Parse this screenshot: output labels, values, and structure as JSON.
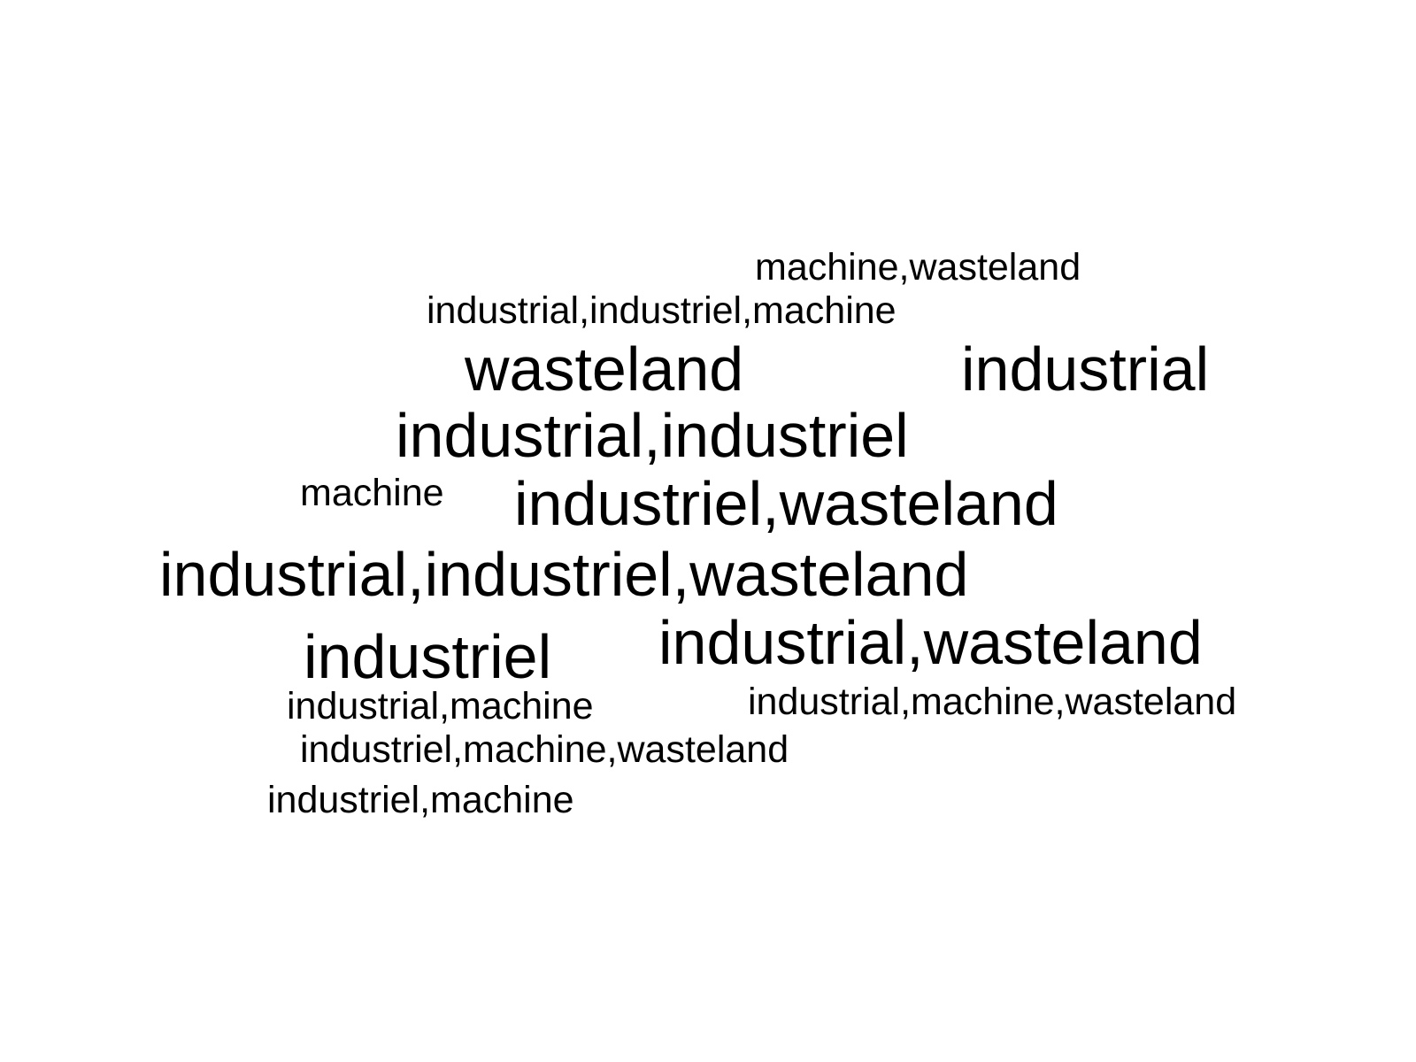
{
  "text_color": "#000000",
  "background_color": "#ffffff",
  "words": [
    {
      "text": "machine,wasteland",
      "size": "small"
    },
    {
      "text": "industrial,industriel,machine",
      "size": "small"
    },
    {
      "text": "wasteland",
      "size": "large"
    },
    {
      "text": "industrial",
      "size": "large"
    },
    {
      "text": "industrial,industriel",
      "size": "large"
    },
    {
      "text": "machine",
      "size": "small"
    },
    {
      "text": "industriel,wasteland",
      "size": "large"
    },
    {
      "text": "industrial,industriel,wasteland",
      "size": "large"
    },
    {
      "text": "industriel",
      "size": "large"
    },
    {
      "text": "industrial,wasteland",
      "size": "large"
    },
    {
      "text": "industrial,machine",
      "size": "small"
    },
    {
      "text": "industrial,machine,wasteland",
      "size": "small"
    },
    {
      "text": "industriel,machine,wasteland",
      "size": "small"
    },
    {
      "text": "industriel,machine",
      "size": "small"
    }
  ]
}
